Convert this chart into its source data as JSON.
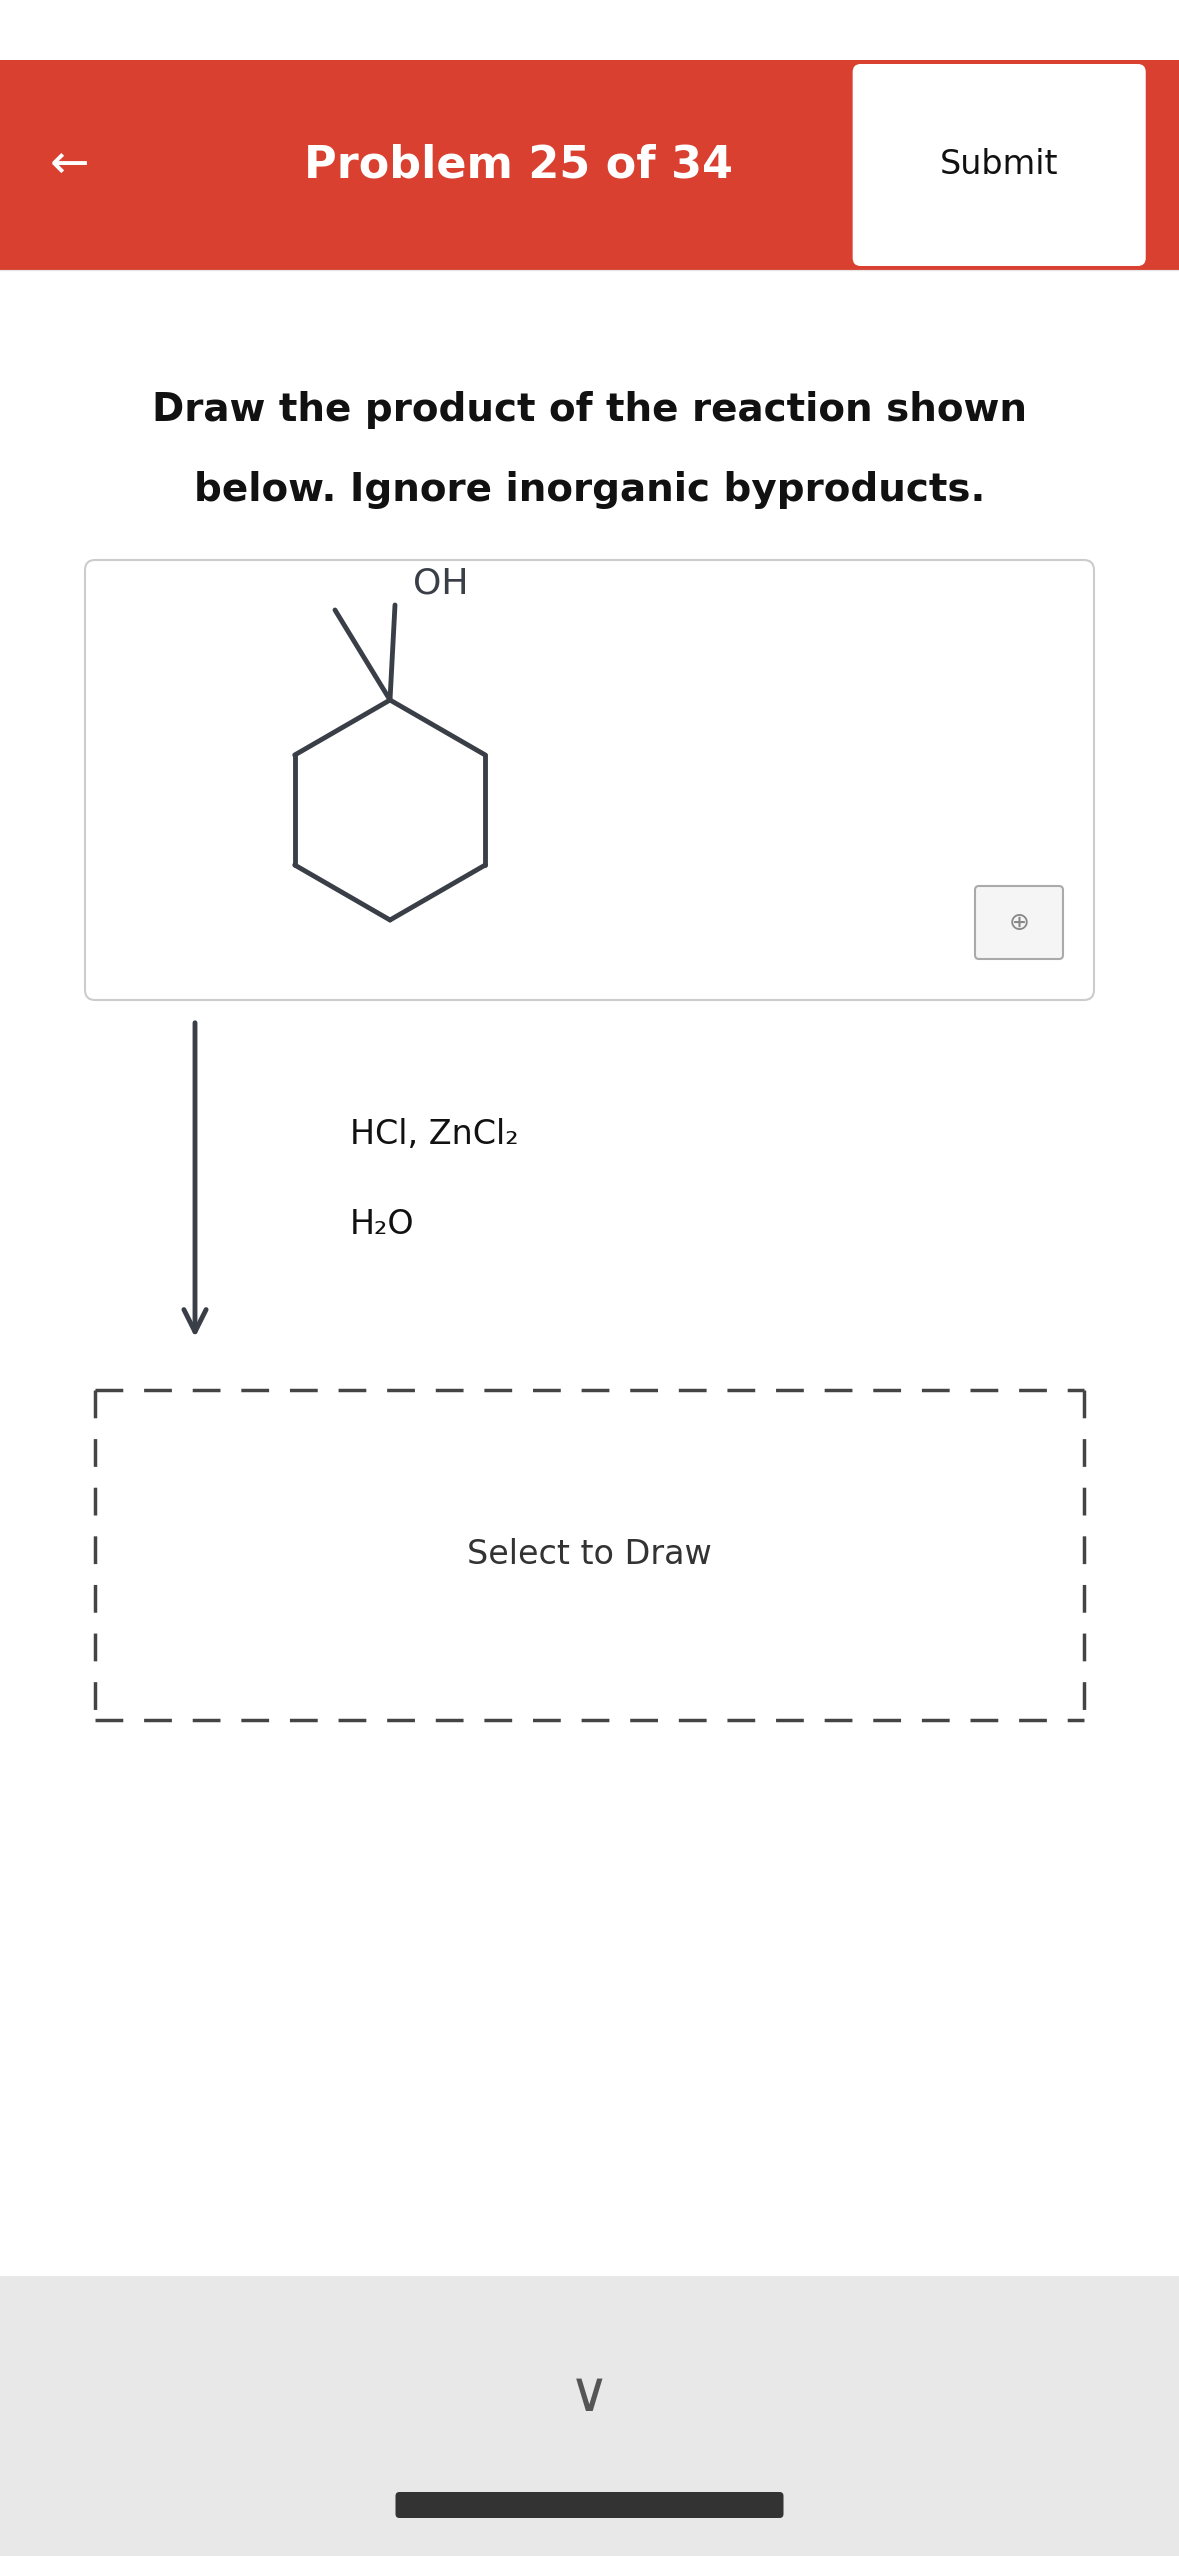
{
  "header_color": "#D94030",
  "header_text": "Problem 25 of 34",
  "header_text_color": "#FFFFFF",
  "header_fontsize": 32,
  "back_arrow": "←",
  "submit_text": "Submit",
  "submit_fontsize": 24,
  "instruction_line1": "Draw the product of the reaction shown",
  "instruction_line2": "below. Ignore inorganic byproducts.",
  "instruction_fontsize": 28,
  "instruction_color": "#111111",
  "molecule_line_color": "#3a3f47",
  "reagent_line1": "HCl, ZnCl₂",
  "reagent_line2": "H₂O",
  "reagent_fontsize": 24,
  "select_text": "Select to Draw",
  "select_fontsize": 24,
  "bg_color": "#FFFFFF",
  "chevron_color": "#555555",
  "bottom_gray_color": "#E8E8E8"
}
